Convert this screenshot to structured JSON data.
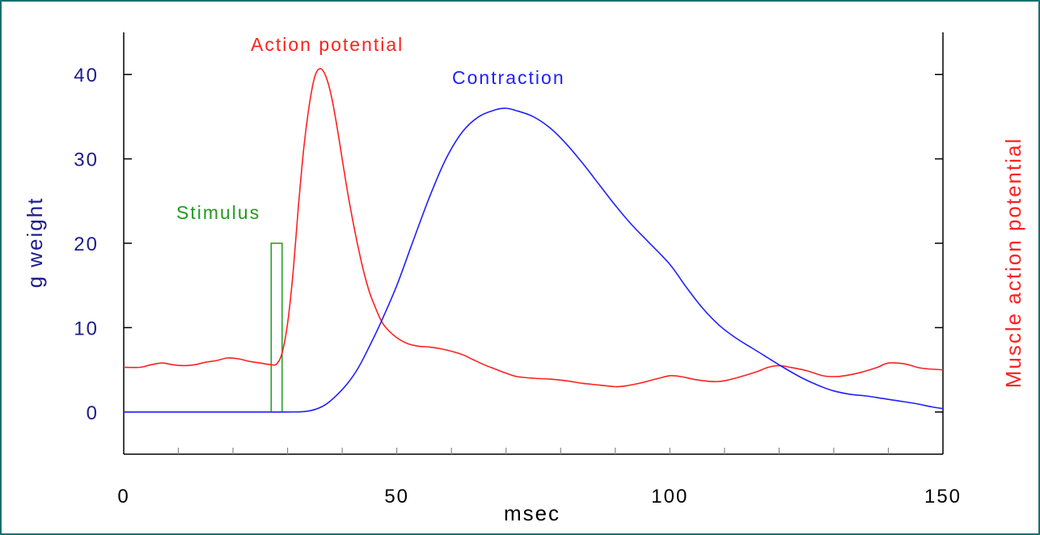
{
  "chart_data": {
    "type": "line",
    "xlabel": "msec",
    "ylabel_left": "g weight",
    "ylabel_right": "Muscle action potential",
    "xlim": [
      0,
      150
    ],
    "ylim": [
      -5,
      45
    ],
    "x_ticks": [
      0,
      50,
      100,
      150
    ],
    "y_ticks": [
      0,
      10,
      20,
      30,
      40
    ],
    "grid": false,
    "colors": {
      "axis": "#000000",
      "left_tick_labels": "#1c1c8c",
      "x_tick_labels": "#000000",
      "right_label": "#ff2020"
    },
    "series": [
      {
        "name": "Action potential",
        "color": "#ff2020",
        "x": [
          0,
          3,
          5,
          7,
          9,
          11,
          13,
          15,
          17,
          19,
          21,
          23,
          25,
          27,
          28,
          29,
          30,
          31,
          32,
          33,
          34,
          35,
          36,
          37,
          38,
          39,
          40,
          41,
          42,
          43,
          44,
          45,
          46,
          47,
          48,
          50,
          52,
          54,
          56,
          58,
          60,
          62,
          64,
          66,
          68,
          70,
          72,
          75,
          78,
          81,
          84,
          87,
          90,
          92,
          95,
          98,
          100,
          102,
          105,
          108,
          110,
          113,
          116,
          118,
          120,
          122,
          125,
          128,
          130,
          132,
          135,
          138,
          140,
          143,
          146,
          150
        ],
        "y": [
          5.3,
          5.3,
          5.6,
          5.8,
          5.6,
          5.5,
          5.6,
          5.9,
          6.1,
          6.4,
          6.3,
          6.0,
          5.8,
          5.6,
          5.7,
          7.0,
          10.5,
          16.5,
          24.5,
          31.5,
          36.5,
          39.8,
          40.7,
          39.8,
          37.5,
          34.0,
          30.0,
          26.0,
          22.5,
          19.3,
          16.5,
          14.2,
          12.5,
          11.0,
          10.0,
          8.8,
          8.1,
          7.8,
          7.7,
          7.5,
          7.2,
          6.8,
          6.2,
          5.6,
          5.1,
          4.6,
          4.2,
          4.0,
          3.9,
          3.7,
          3.4,
          3.2,
          3.0,
          3.1,
          3.5,
          4.0,
          4.3,
          4.2,
          3.8,
          3.6,
          3.7,
          4.2,
          4.8,
          5.3,
          5.5,
          5.3,
          4.9,
          4.3,
          4.2,
          4.3,
          4.7,
          5.3,
          5.8,
          5.7,
          5.2,
          5.0
        ]
      },
      {
        "name": "Contraction",
        "color": "#2020ff",
        "x": [
          0,
          10,
          20,
          30,
          33,
          35,
          37,
          39,
          41,
          43,
          45,
          47,
          50,
          53,
          56,
          59,
          62,
          65,
          68,
          70,
          72,
          75,
          78,
          81,
          84,
          87,
          90,
          93,
          96,
          100,
          103,
          106,
          109,
          112,
          115,
          118,
          121,
          124,
          127,
          130,
          133,
          136,
          139,
          142,
          145,
          148,
          150
        ],
        "y": [
          0,
          0,
          0,
          0,
          0.05,
          0.3,
          0.9,
          2.0,
          3.4,
          5.3,
          7.8,
          10.5,
          15.0,
          20.3,
          25.5,
          30.0,
          33.2,
          35.0,
          35.8,
          36.0,
          35.7,
          35.0,
          33.7,
          31.8,
          29.5,
          27.0,
          24.5,
          22.2,
          20.2,
          17.5,
          14.8,
          12.3,
          10.3,
          8.8,
          7.6,
          6.4,
          5.2,
          4.1,
          3.2,
          2.5,
          2.1,
          1.9,
          1.6,
          1.3,
          1.0,
          0.6,
          0.4
        ]
      }
    ],
    "stimulus": {
      "name": "Stimulus",
      "color": "#1e9a1e",
      "x_start": 27,
      "x_end": 29,
      "height": 20
    },
    "annotations": {
      "action_potential": "Action potential",
      "contraction": "Contraction",
      "stimulus": "Stimulus"
    }
  }
}
